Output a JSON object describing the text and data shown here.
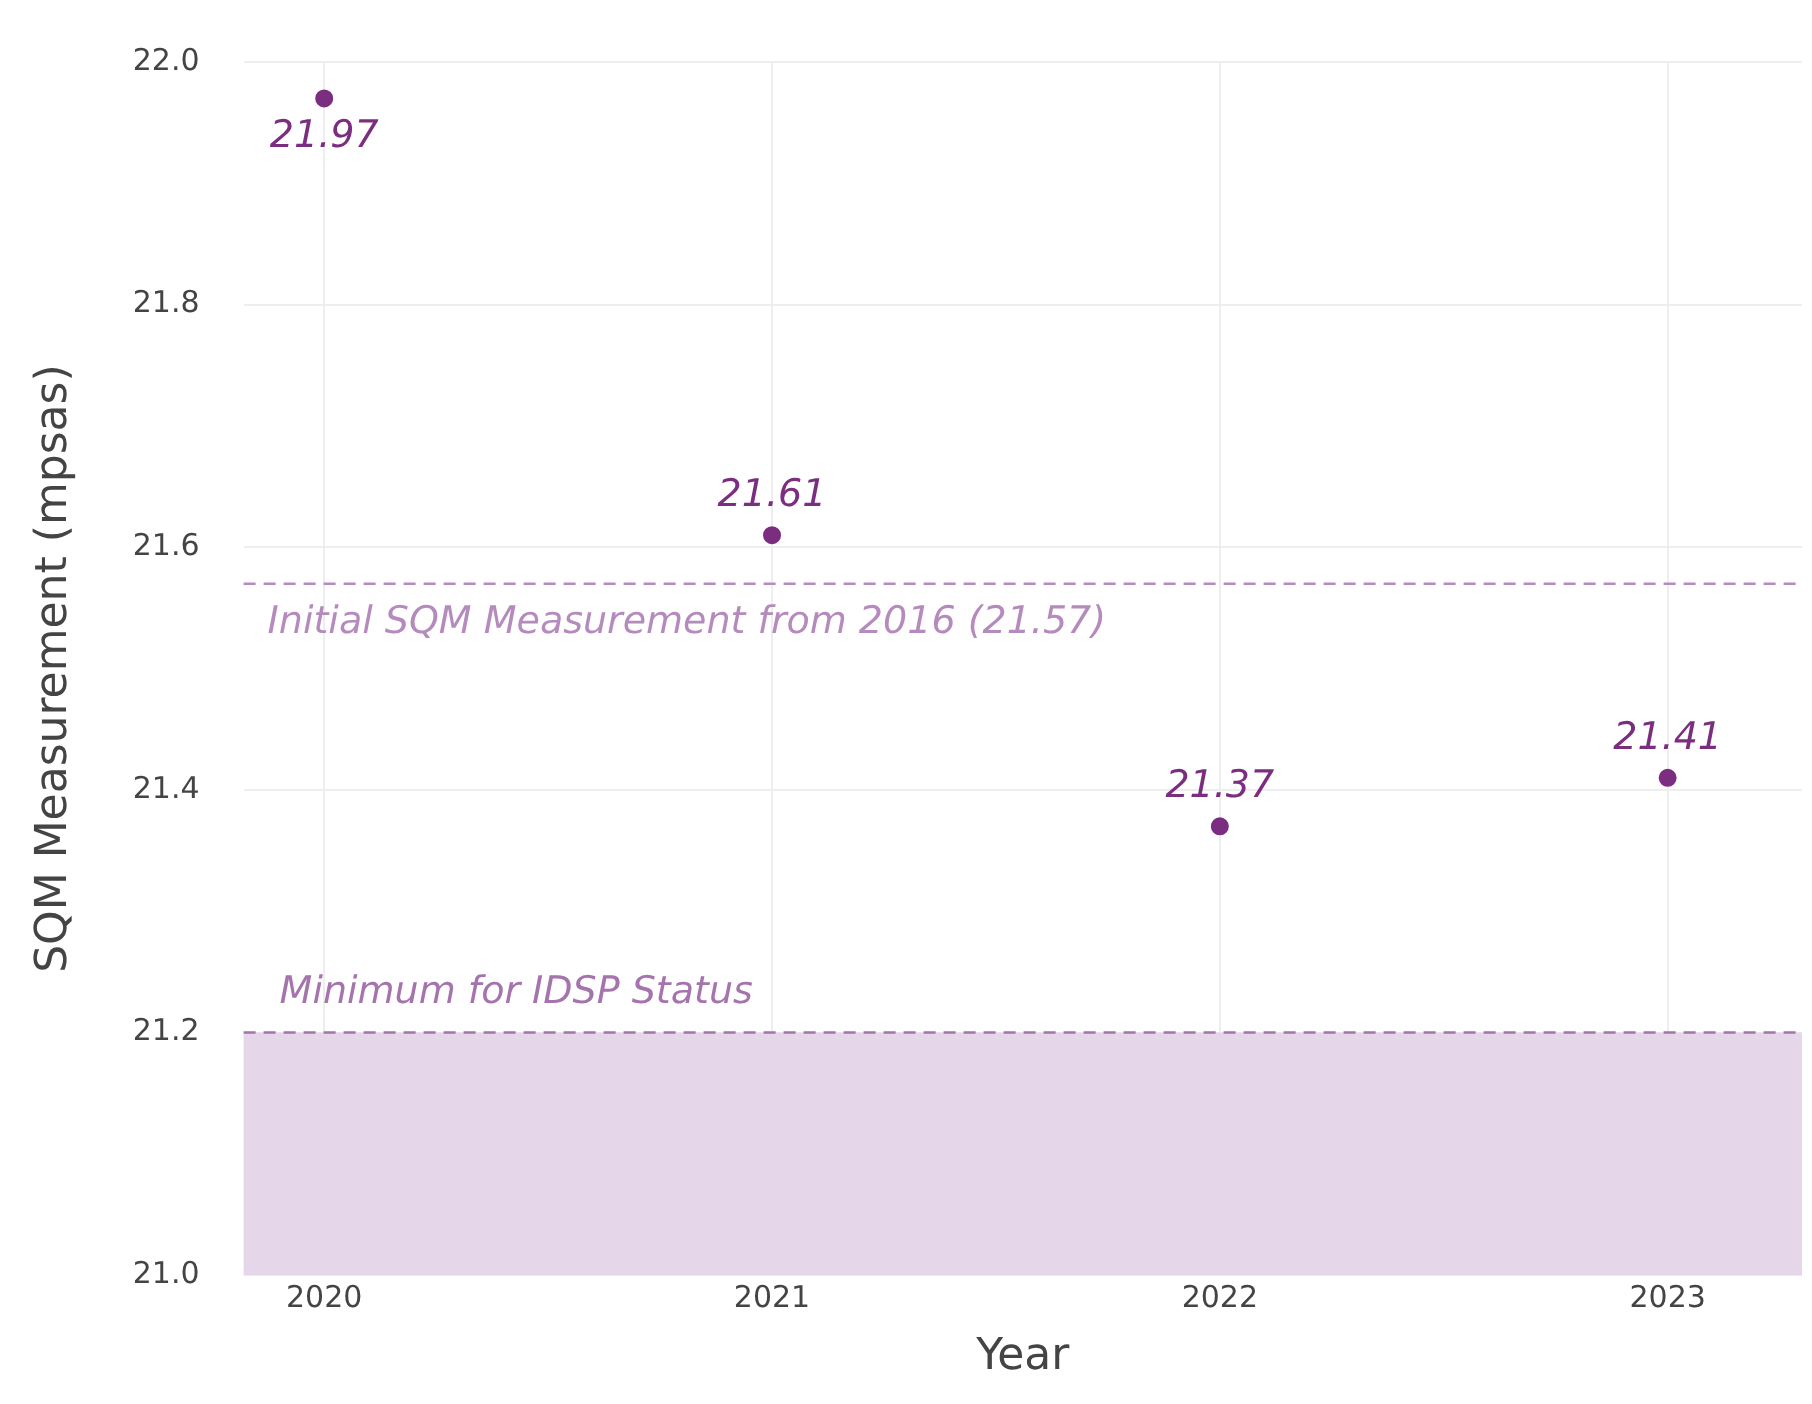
{
  "chart_data": {
    "type": "scatter",
    "xlabel": "Year",
    "ylabel": "SQM Measurement (mpsas)",
    "x": [
      2020,
      2021,
      2022,
      2023
    ],
    "series": [
      {
        "color": "#7b2d80",
        "values": [
          21.97,
          21.61,
          21.37,
          21.41
        ]
      }
    ],
    "data_labels": true,
    "marker": "circle",
    "grid": true,
    "legend": false,
    "xlim": [
      2019.82,
      2023.3
    ],
    "xticks": [
      2020,
      2021,
      2022,
      2023
    ],
    "ylim": [
      21.0,
      22.0
    ],
    "yticks": [
      {
        "value": 21.0,
        "label": "21.0"
      },
      21.2,
      21.4,
      21.6,
      21.8,
      {
        "value": 22.0,
        "label": "22.0"
      }
    ],
    "ref_lines": [
      {
        "axis": "y",
        "value": 21.57,
        "label": "Initial SQM Measurement from 2016 (21.57)",
        "color": "#b58bbd",
        "line_style": "dashed"
      },
      {
        "axis": "y",
        "value": 21.2,
        "label": "Minimum for IDSP Status",
        "color": "#a574ad",
        "line_style": "dashed"
      }
    ],
    "bands": [
      {
        "axis": "y",
        "from": 21.0,
        "to": 21.2,
        "color": "#e6d6e9"
      }
    ]
  }
}
